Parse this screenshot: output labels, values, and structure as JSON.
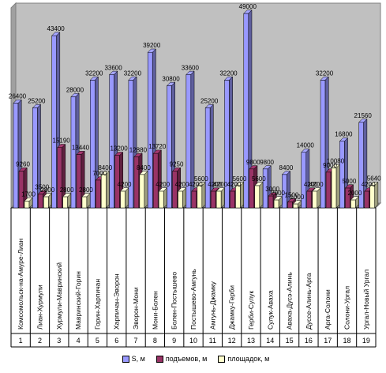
{
  "chart_data": {
    "type": "bar",
    "bar_style": "3d-clustered",
    "ylim": [
      0,
      50000
    ],
    "grid": false,
    "legend_position": "bottom",
    "index_labels": [
      "1",
      "2",
      "3",
      "4",
      "5",
      "6",
      "7",
      "8",
      "9",
      "10",
      "11",
      "12",
      "13",
      "14",
      "15",
      "16",
      "17",
      "18",
      "19"
    ],
    "categories": [
      "Комсомольск-на-Амуре-Лиан",
      "Лиан-Хурмули",
      "Хурмули-Мавринский",
      "Мавринский-Горин",
      "Горин-Харпичан",
      "Харпичан-Эворон",
      "Эворон-Мони",
      "Мони-Болен",
      "Болен-Постышево",
      "Постышево-Амгунь",
      "Амгунь-Джамку",
      "Джамку-Герби",
      "Герби-Сулук",
      "Сулук-Аваха",
      "Аваха-Дусэ-Алинь",
      "Дуссе-Алинь-Арга",
      "Арга-Солони",
      "Солони-Ургал",
      "Ургал-Новый Ургал"
    ],
    "series": [
      {
        "name": "S, м",
        "color": "#9999ff",
        "values": [
          26400,
          25200,
          43400,
          28000,
          32200,
          33600,
          32200,
          39200,
          30800,
          33600,
          25200,
          32200,
          49000,
          9800,
          8400,
          14000,
          32200,
          16800,
          21560
        ],
        "labels": [
          "26400",
          "25200",
          "43400",
          "28000",
          "32200",
          "33600",
          "32200",
          "39200",
          "30800",
          "33600",
          "25200",
          "32200",
          "49000",
          "9800",
          "8400",
          "14000",
          "32200",
          "16800",
          "21560"
        ]
      },
      {
        "name": "подъемов, м",
        "color": "#993366",
        "values": [
          9260,
          3500,
          15190,
          13440,
          7000,
          13200,
          12880,
          13720,
          9250,
          4200,
          4200,
          4200,
          9800,
          3000,
          1500,
          4200,
          9000,
          5000,
          4200
        ],
        "labels": [
          "9260",
          "3500",
          "15190",
          "13440",
          "7000",
          "13200",
          "12880",
          "13720",
          "9250",
          "4200",
          "4200",
          "4200",
          "9800",
          "3000",
          "1500",
          "4200",
          "9000",
          "5000",
          "4200"
        ]
      },
      {
        "name": "площадок, м",
        "color": "#ffffcc",
        "values": [
          1700,
          2800,
          2800,
          2800,
          8400,
          4200,
          8400,
          4200,
          4200,
          5600,
          4200,
          5600,
          5600,
          2000,
          1000,
          4200,
          10080,
          2000,
          5640
        ],
        "labels": [
          "1700",
          "2800",
          "2800",
          "2800",
          "8400",
          "4200",
          "8400",
          "4200",
          "4200",
          "5600",
          "4200",
          "5600",
          "5600",
          "2000",
          "1000",
          "4200",
          "10080",
          "2000",
          "5640"
        ]
      }
    ]
  }
}
